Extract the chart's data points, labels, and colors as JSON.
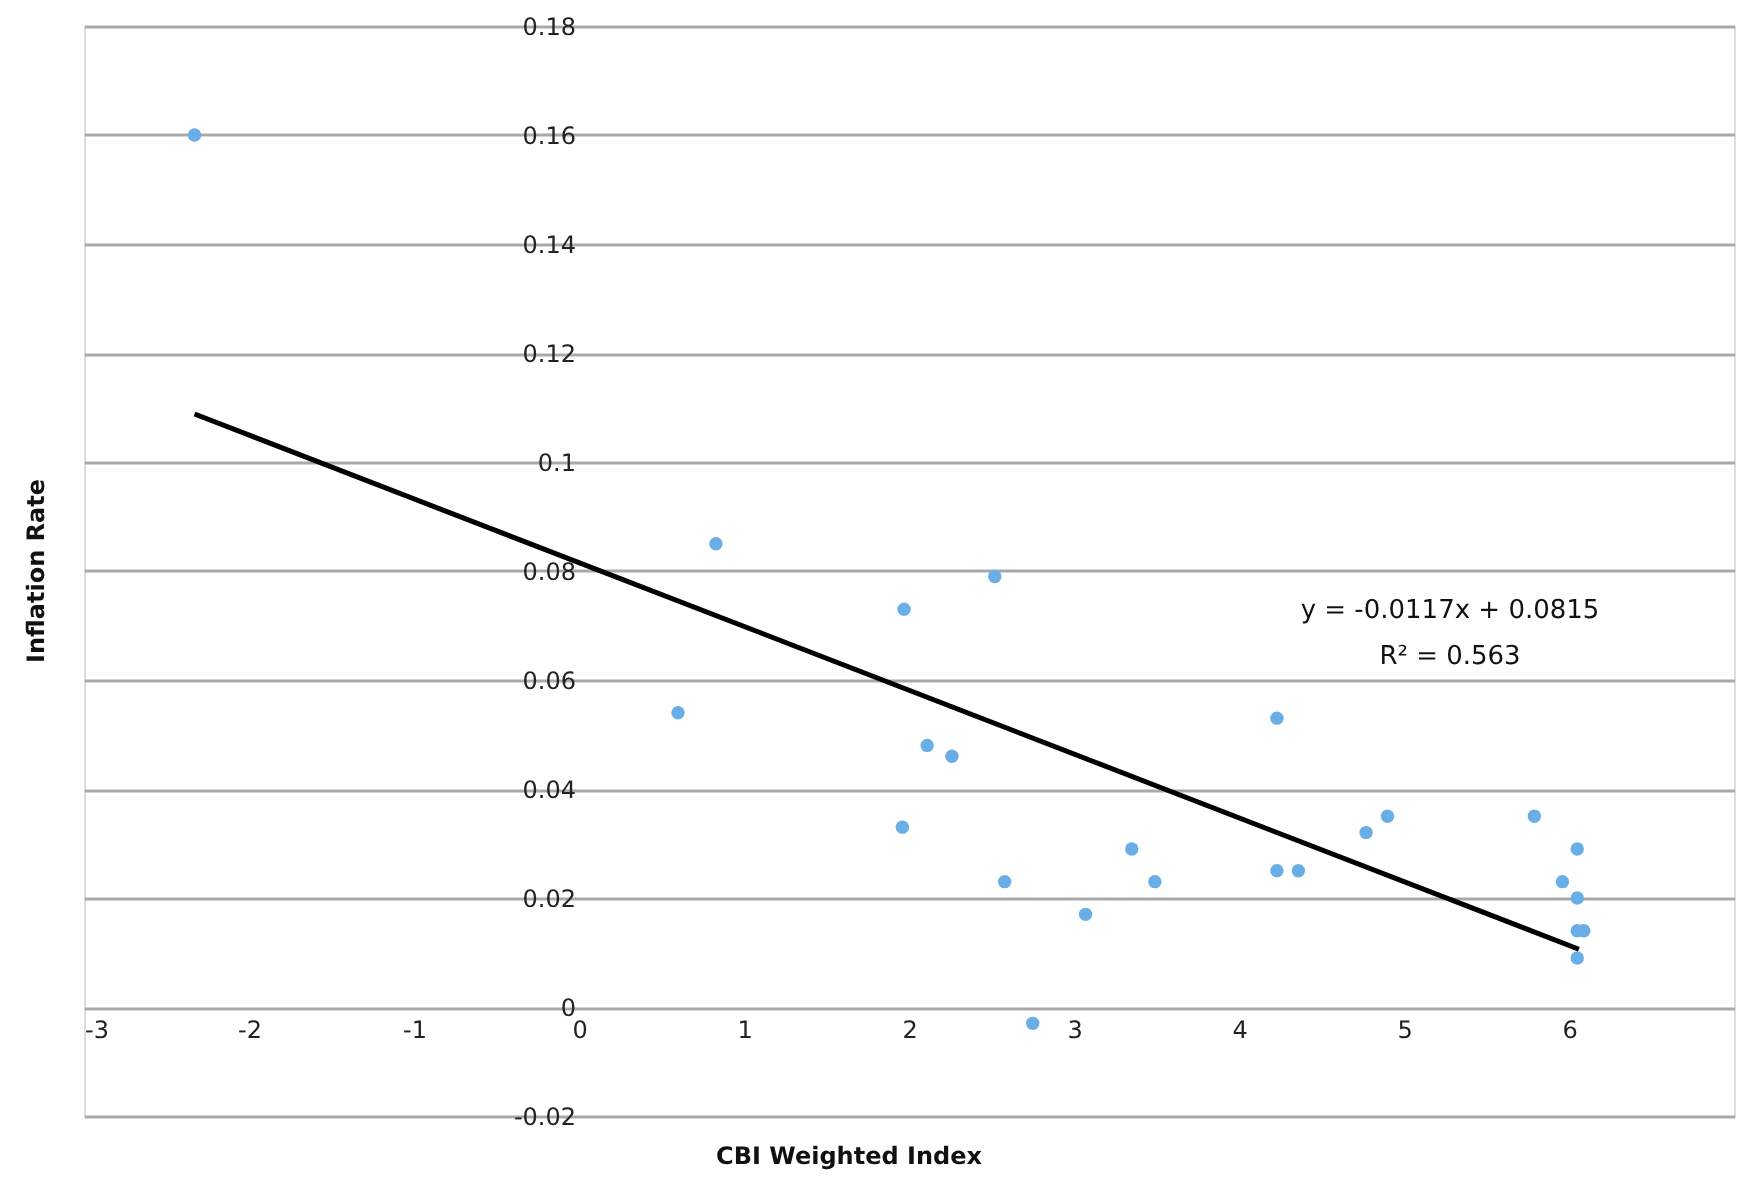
{
  "chart_data": {
    "type": "scatter",
    "xlabel": "CBI Weighted Index",
    "ylabel": "Inflation Rate",
    "xlim": [
      -3,
      7
    ],
    "xticks": [
      -3,
      -2,
      -1,
      0,
      1,
      2,
      3,
      4,
      5,
      6
    ],
    "ylim": [
      -0.02,
      0.18
    ],
    "yticks": [
      -0.02,
      0,
      0.02,
      0.04,
      0.06,
      0.08,
      0.1,
      0.12,
      0.14,
      0.16,
      0.18
    ],
    "grid": "y",
    "series": [
      {
        "marker": "circle",
        "color": "#6aaee8",
        "x": [
          -2.33,
          0.6,
          0.83,
          1.96,
          1.97,
          2.11,
          2.26,
          2.52,
          2.58,
          2.75,
          3.07,
          3.35,
          3.49,
          4.23,
          4.23,
          4.36,
          4.77,
          4.9,
          5.79,
          5.96,
          6.05,
          6.05,
          6.05,
          6.09,
          6.05
        ],
        "values": [
          0.16,
          0.054,
          0.085,
          0.033,
          0.073,
          0.048,
          0.046,
          0.079,
          0.023,
          -0.003,
          0.017,
          0.029,
          0.023,
          0.053,
          0.025,
          0.025,
          0.032,
          0.035,
          0.035,
          0.023,
          0.029,
          0.02,
          0.014,
          0.014,
          0.009
        ]
      },
      {
        "type": "line",
        "color": "#000000",
        "line_style": "solid",
        "x": [
          -2.33,
          6.06
        ],
        "values": [
          0.1088,
          0.0106
        ]
      }
    ],
    "annotations": [
      "y = -0.0117x + 0.0815",
      "R² = 0.563"
    ]
  }
}
